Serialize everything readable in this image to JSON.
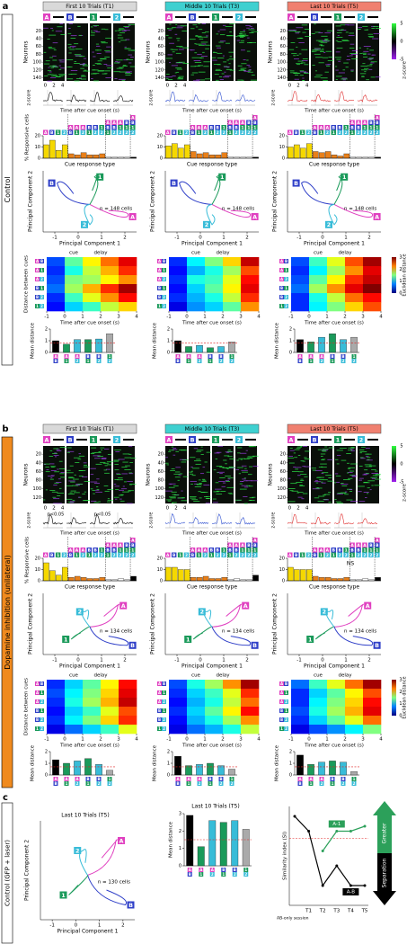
{
  "cues": [
    "A",
    "B",
    "1",
    "2"
  ],
  "cue_colors": [
    "#e040c0",
    "#3040c8",
    "#1a9a5a",
    "#38bcd8"
  ],
  "labels": {
    "neurons": "Neurons",
    "zscore": "z-score",
    "time": "Time after cue onset (s)",
    "responsive": "% Responsive cells",
    "response_type": "Cue response type",
    "pc1": "Principal Component 1",
    "pc2": "Principal Component 2",
    "distance_between": "Distance between cues",
    "cue": "cue",
    "delay": "delay",
    "mean_distance": "Mean distance",
    "euclidean": "Euclidean distance"
  },
  "raster_xlim": [
    -0.5,
    4.5
  ],
  "time_ticks": [
    0,
    2,
    4
  ],
  "zlim": [
    -5,
    5
  ],
  "zscore_ticks": [
    5,
    0,
    -5
  ],
  "responsive_ylim": [
    0,
    20
  ],
  "responsive_ticks": [
    0,
    10,
    20
  ],
  "response_types": [
    [
      "A"
    ],
    [
      "B"
    ],
    [
      "1"
    ],
    [
      "2"
    ],
    [
      "A",
      "B"
    ],
    [
      "A",
      "1"
    ],
    [
      "A",
      "2"
    ],
    [
      "B",
      "1"
    ],
    [
      "B",
      "2"
    ],
    [
      "1",
      "2"
    ],
    [
      "A",
      "B",
      "1"
    ],
    [
      "A",
      "B",
      "2"
    ],
    [
      "A",
      "1",
      "2"
    ],
    [
      "B",
      "1",
      "2"
    ],
    [
      "A",
      "B",
      "1",
      "2"
    ]
  ],
  "response_colors": [
    "#f5d800",
    "#e8801a",
    "#ffffff",
    "#000000"
  ],
  "pca_xlim": [
    -1.5,
    2.5
  ],
  "pca_ticks": [
    -1,
    0,
    1,
    2
  ],
  "dist_xlim": [
    -1,
    4
  ],
  "dist_ticks": [
    -1,
    0,
    1,
    2,
    3,
    4
  ],
  "euclid_lim": [
    0,
    3
  ],
  "euclid_ticks": [
    3,
    2,
    1,
    0
  ],
  "mean_ylim": [
    0,
    2
  ],
  "mean_ticks": [
    0,
    1,
    2
  ],
  "pairs": [
    [
      "A",
      "B"
    ],
    [
      "A",
      "1"
    ],
    [
      "A",
      "2"
    ],
    [
      "B",
      "1"
    ],
    [
      "B",
      "2"
    ],
    [
      "1",
      "2"
    ]
  ],
  "pair_colors": [
    "#000000",
    "#1a9a5a",
    "#38bcd8",
    "#1a9a5a",
    "#38bcd8",
    "#aaaaaa"
  ],
  "panels": [
    {
      "letter": "a",
      "condition": "Control",
      "condition_color": "#ffffff",
      "neuron_lim": [
        1,
        148
      ],
      "neuron_ticks": [
        20,
        40,
        60,
        80,
        100,
        120,
        140
      ],
      "n_label": "n = 148 cells",
      "chance": 0.8,
      "columns": [
        {
          "title": "First 10 Trials (T1)",
          "title_color": "#d9d9d9",
          "trace_color": "#000000",
          "responsive": [
            12,
            16,
            7,
            12,
            4,
            3,
            5,
            3,
            3,
            4,
            1,
            1,
            1,
            1,
            1
          ],
          "mean_distance": [
            1.0,
            0.7,
            1.1,
            1.1,
            1.15,
            1.6
          ],
          "distance": [
            [
              0.6,
              1.4,
              1.9,
              2.3,
              2.7
            ],
            [
              0.5,
              1.2,
              1.7,
              2.1,
              2.5
            ],
            [
              0.6,
              1.5,
              1.6,
              1.9,
              2.2
            ],
            [
              0.7,
              1.6,
              2.1,
              2.5,
              2.9
            ],
            [
              0.5,
              1.3,
              1.8,
              2.2,
              2.6
            ],
            [
              0.4,
              1.0,
              1.3,
              1.7,
              2.0
            ]
          ]
        },
        {
          "title": "Middle 10 Trials (T3)",
          "title_color": "#3fd0d0",
          "trace_color": "#3050d0",
          "responsive": [
            11,
            13,
            9,
            12,
            6,
            4,
            5,
            3,
            3,
            5,
            1,
            1,
            1,
            1,
            1
          ],
          "mean_distance": [
            1.0,
            0.5,
            0.6,
            0.4,
            0.5,
            0.9
          ],
          "distance": [
            [
              0.5,
              1.1,
              1.5,
              2.0,
              2.8
            ],
            [
              0.4,
              0.9,
              1.2,
              1.6,
              2.4
            ],
            [
              0.5,
              1.2,
              1.3,
              1.8,
              2.6
            ],
            [
              0.4,
              1.0,
              1.4,
              1.9,
              2.7
            ],
            [
              0.5,
              0.9,
              1.2,
              1.7,
              2.5
            ],
            [
              0.3,
              0.8,
              1.0,
              1.4,
              2.2
            ]
          ]
        },
        {
          "title": "Last 10 Trials (T5)",
          "title_color": "#f08070",
          "trace_color": "#e03030",
          "responsive": [
            10,
            12,
            9,
            13,
            6,
            5,
            6,
            3,
            2,
            4,
            1,
            1,
            1,
            1,
            1
          ],
          "mean_distance": [
            1.1,
            0.9,
            1.3,
            1.6,
            1.1,
            1.3
          ],
          "distance": [
            [
              0.6,
              1.3,
              1.8,
              2.4,
              2.9
            ],
            [
              0.5,
              1.1,
              1.6,
              2.2,
              2.7
            ],
            [
              0.6,
              1.4,
              1.9,
              2.5,
              2.8
            ],
            [
              0.7,
              1.6,
              2.2,
              2.7,
              3.0
            ],
            [
              0.5,
              1.2,
              1.7,
              2.3,
              2.6
            ],
            [
              0.5,
              1.1,
              1.5,
              2.0,
              2.4
            ]
          ]
        }
      ]
    },
    {
      "letter": "b",
      "condition": "Dopamine inhibition (unilateral)",
      "condition_color": "#f08a1e",
      "neuron_lim": [
        1,
        134
      ],
      "neuron_ticks": [
        20,
        40,
        60,
        80,
        100,
        120
      ],
      "n_label": "n = 134 cells",
      "chance": 0.7,
      "columns": [
        {
          "title": "First 10 Trials (T1)",
          "title_color": "#d9d9d9",
          "trace_color": "#000000",
          "annotations": [
            "p<0.05",
            "p<0.05"
          ],
          "responsive": [
            16,
            9,
            5,
            12,
            3,
            4,
            3,
            2,
            2,
            3,
            1,
            1,
            2,
            1,
            4
          ],
          "mean_distance": [
            1.3,
            1.0,
            1.2,
            1.4,
            0.9,
            0.4
          ],
          "distance": [
            [
              0.5,
              1.0,
              1.4,
              1.9,
              2.6
            ],
            [
              0.6,
              1.1,
              1.5,
              2.0,
              2.7
            ],
            [
              0.5,
              1.2,
              1.6,
              2.1,
              2.8
            ],
            [
              0.4,
              1.0,
              1.3,
              1.8,
              2.4
            ],
            [
              0.5,
              1.1,
              1.5,
              2.0,
              2.5
            ],
            [
              0.3,
              0.7,
              1.0,
              1.3,
              1.8
            ]
          ]
        },
        {
          "title": "Middle 10 Trials (T3)",
          "title_color": "#3fd0d0",
          "trace_color": "#3050d0",
          "responsive": [
            12,
            12,
            10,
            10,
            3,
            3,
            4,
            2,
            2,
            3,
            1,
            2,
            1,
            1,
            5
          ],
          "mean_distance": [
            1.6,
            0.8,
            0.9,
            1.0,
            0.8,
            0.5
          ],
          "distance": [
            [
              0.6,
              1.2,
              1.6,
              2.2,
              2.9
            ],
            [
              0.5,
              1.0,
              1.3,
              1.8,
              2.5
            ],
            [
              0.4,
              0.9,
              1.2,
              1.7,
              2.3
            ],
            [
              0.5,
              1.0,
              1.4,
              1.9,
              2.6
            ],
            [
              0.4,
              0.9,
              1.2,
              1.6,
              2.2
            ],
            [
              0.3,
              0.7,
              0.9,
              1.2,
              1.7
            ]
          ]
        },
        {
          "title": "Last 10 Trials (T5)",
          "title_color": "#f08070",
          "trace_color": "#e03030",
          "note": "NS",
          "responsive": [
            12,
            10,
            10,
            10,
            4,
            3,
            3,
            2,
            2,
            3,
            1,
            1,
            2,
            1,
            3
          ],
          "mean_distance": [
            1.7,
            0.9,
            1.1,
            1.2,
            1.1,
            0.3
          ],
          "distance": [
            [
              0.7,
              1.3,
              1.8,
              2.3,
              2.9
            ],
            [
              0.5,
              1.0,
              1.4,
              1.9,
              2.4
            ],
            [
              0.5,
              1.1,
              1.5,
              2.0,
              2.6
            ],
            [
              0.6,
              1.2,
              1.6,
              2.1,
              2.7
            ],
            [
              0.5,
              1.0,
              1.4,
              1.8,
              2.3
            ],
            [
              0.3,
              0.6,
              0.8,
              1.1,
              1.5
            ]
          ]
        }
      ]
    }
  ],
  "panel_c": {
    "letter": "c",
    "condition": "Control (GFP + laser)",
    "condition_color": "#ffffff",
    "title": "Last 10 Trials (T5)",
    "n_label": "n = 130 cells",
    "mean_distance": [
      2.9,
      1.1,
      2.6,
      2.5,
      2.6,
      2.1
    ],
    "mean_ylim": [
      0,
      3
    ],
    "mean_ticks": [
      0,
      1,
      2,
      3
    ],
    "chance": 1.5,
    "si": {
      "ylabel": "Similarity index (SI)",
      "categories": [
        "AB-only session",
        "T1",
        "T2",
        "T3",
        "T4",
        "T5"
      ],
      "ylim": [
        -1,
        1
      ],
      "threshold": 0.35,
      "series": [
        {
          "name": "A-1",
          "color": "#2ca05a",
          "values": [
            null,
            null,
            0.1,
            0.5,
            0.5,
            0.6
          ]
        },
        {
          "name": "A-B",
          "color": "#000000",
          "values": [
            0.8,
            0.5,
            -0.6,
            -0.2,
            -0.6,
            -0.6
          ]
        }
      ]
    },
    "arrows": {
      "up": "Greater",
      "down": "Separation",
      "up_color": "#2ca05a",
      "down_color": "#000000"
    }
  }
}
